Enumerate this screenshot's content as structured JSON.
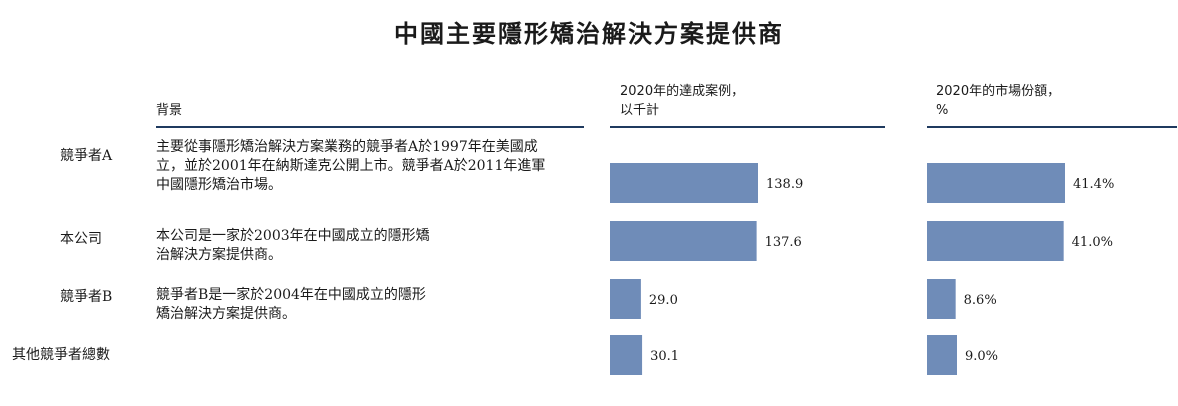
{
  "title": "中國主要隱形矯治解決方案提供商",
  "headers": {
    "background": "背景",
    "cases": "2020年的達成案例，\n以千計",
    "share": "2020年的市場份額，\n%"
  },
  "colors": {
    "bar": "#6f8cb8",
    "rule": "#1f3a5f"
  },
  "rows": [
    {
      "label": "競爭者A",
      "desc": "主要從事隱形矯治解決方案業務的競爭者A於1997年在美國成\n立，並於2001年在納斯達克公開上市。競爭者A於2011年進軍\n中國隱形矯治市場。"
    },
    {
      "label": "本公司",
      "desc": "本公司是一家於2003年在中國成立的隱形矯\n治解決方案提供商。"
    },
    {
      "label": "競爭者B",
      "desc": "競爭者B是一家於2004年在中國成立的隱形\n矯治解決方案提供商。"
    },
    {
      "label": "其他競爭者總數",
      "desc": ""
    }
  ],
  "chart_data": [
    {
      "type": "bar",
      "orientation": "horizontal",
      "categories": [
        "競爭者A",
        "本公司",
        "競爭者B",
        "其他競爭者總數"
      ],
      "values": [
        138.9,
        137.6,
        29.0,
        30.1
      ],
      "value_labels": [
        "138.9",
        "137.6",
        "29.0",
        "30.1"
      ],
      "title": "2020年的達成案例，以千計",
      "xlim": [
        0,
        150
      ]
    },
    {
      "type": "bar",
      "orientation": "horizontal",
      "categories": [
        "競爭者A",
        "本公司",
        "競爭者B",
        "其他競爭者總數"
      ],
      "values": [
        41.4,
        41.0,
        8.6,
        9.0
      ],
      "value_labels": [
        "41.4%",
        "41.0%",
        "8.6%",
        "9.0%"
      ],
      "title": "2020年的市場份額，%",
      "xlim": [
        0,
        45
      ]
    }
  ]
}
